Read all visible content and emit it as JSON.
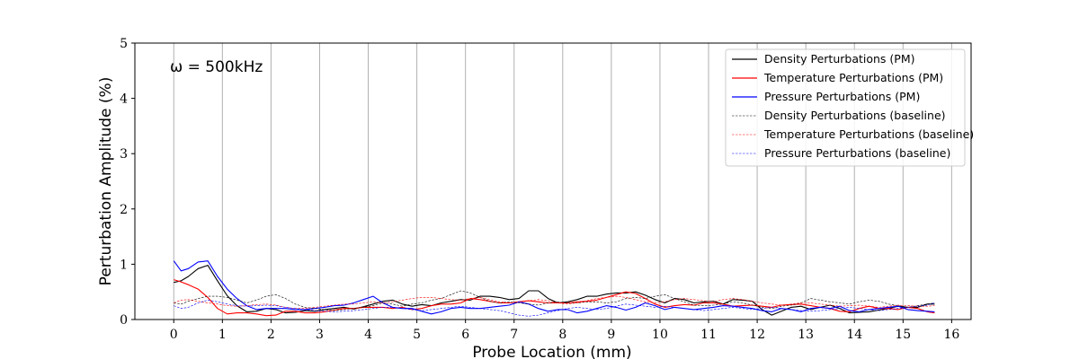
{
  "chart_data": {
    "type": "line",
    "title": "",
    "xlabel": "Probe Location (mm)",
    "ylabel": "Perturbation Amplitude (%)",
    "annotation": "ω = 500kHz",
    "xlim": [
      -0.8,
      16.4
    ],
    "ylim": [
      0,
      5
    ],
    "xticks": [
      0,
      1,
      2,
      3,
      4,
      5,
      6,
      7,
      8,
      9,
      10,
      11,
      12,
      13,
      14,
      15,
      16
    ],
    "yticks": [
      0,
      1,
      2,
      3,
      4,
      5
    ],
    "grid": "vertical",
    "legend_position": "upper right",
    "series": [
      {
        "name": "Density Perturbations (PM)",
        "color": "#000000",
        "style": "solid",
        "x": [
          0,
          0.15,
          0.3,
          0.5,
          0.7,
          0.9,
          1.1,
          1.3,
          1.5,
          1.7,
          1.9,
          2.1,
          2.3,
          2.5,
          2.7,
          2.9,
          3.1,
          3.3,
          3.5,
          3.7,
          3.9,
          4.1,
          4.3,
          4.5,
          4.7,
          4.9,
          5.1,
          5.3,
          5.5,
          5.7,
          5.9,
          6.1,
          6.3,
          6.5,
          6.7,
          6.9,
          7.1,
          7.3,
          7.5,
          7.7,
          7.9,
          8.1,
          8.3,
          8.5,
          8.7,
          8.9,
          9.1,
          9.3,
          9.5,
          9.7,
          9.9,
          10.1,
          10.3,
          10.5,
          10.7,
          10.9,
          11.1,
          11.3,
          11.5,
          11.7,
          11.9,
          12.1,
          12.3,
          12.5,
          12.7,
          12.9,
          13.1,
          13.3,
          13.5,
          13.7,
          13.9,
          14.1,
          14.3,
          14.5,
          14.7,
          14.9,
          15.1,
          15.3,
          15.5,
          15.65
        ],
        "values": [
          0.67,
          0.7,
          0.78,
          0.92,
          0.98,
          0.7,
          0.43,
          0.25,
          0.14,
          0.15,
          0.2,
          0.18,
          0.12,
          0.13,
          0.16,
          0.15,
          0.18,
          0.2,
          0.22,
          0.19,
          0.23,
          0.28,
          0.33,
          0.35,
          0.28,
          0.24,
          0.27,
          0.25,
          0.3,
          0.33,
          0.36,
          0.35,
          0.42,
          0.42,
          0.4,
          0.36,
          0.38,
          0.52,
          0.52,
          0.38,
          0.3,
          0.32,
          0.36,
          0.42,
          0.42,
          0.46,
          0.48,
          0.48,
          0.5,
          0.44,
          0.36,
          0.3,
          0.38,
          0.36,
          0.3,
          0.32,
          0.33,
          0.28,
          0.36,
          0.35,
          0.33,
          0.18,
          0.08,
          0.15,
          0.22,
          0.24,
          0.18,
          0.22,
          0.26,
          0.2,
          0.12,
          0.13,
          0.14,
          0.17,
          0.2,
          0.24,
          0.22,
          0.22,
          0.28,
          0.28
        ]
      },
      {
        "name": "Temperature Perturbations (PM)",
        "color": "#ff0000",
        "style": "solid",
        "x": [
          0,
          0.15,
          0.3,
          0.5,
          0.7,
          0.9,
          1.1,
          1.3,
          1.5,
          1.7,
          1.9,
          2.1,
          2.3,
          2.5,
          2.7,
          2.9,
          3.1,
          3.3,
          3.5,
          3.7,
          3.9,
          4.1,
          4.3,
          4.5,
          4.7,
          4.9,
          5.1,
          5.3,
          5.5,
          5.7,
          5.9,
          6.1,
          6.3,
          6.5,
          6.7,
          6.9,
          7.1,
          7.3,
          7.5,
          7.7,
          7.9,
          8.1,
          8.3,
          8.5,
          8.7,
          8.9,
          9.1,
          9.3,
          9.5,
          9.7,
          9.9,
          10.1,
          10.3,
          10.5,
          10.7,
          10.9,
          11.1,
          11.3,
          11.5,
          11.7,
          11.9,
          12.1,
          12.3,
          12.5,
          12.7,
          12.9,
          13.1,
          13.3,
          13.5,
          13.7,
          13.9,
          14.1,
          14.3,
          14.5,
          14.7,
          14.9,
          15.1,
          15.3,
          15.5,
          15.65
        ],
        "values": [
          0.72,
          0.68,
          0.63,
          0.55,
          0.4,
          0.2,
          0.1,
          0.12,
          0.12,
          0.1,
          0.07,
          0.08,
          0.15,
          0.15,
          0.12,
          0.12,
          0.14,
          0.17,
          0.2,
          0.2,
          0.22,
          0.22,
          0.22,
          0.2,
          0.22,
          0.18,
          0.2,
          0.25,
          0.28,
          0.28,
          0.3,
          0.38,
          0.36,
          0.33,
          0.3,
          0.3,
          0.32,
          0.34,
          0.32,
          0.3,
          0.3,
          0.3,
          0.32,
          0.33,
          0.35,
          0.4,
          0.45,
          0.5,
          0.47,
          0.38,
          0.28,
          0.22,
          0.25,
          0.27,
          0.26,
          0.3,
          0.3,
          0.28,
          0.24,
          0.25,
          0.26,
          0.24,
          0.22,
          0.26,
          0.27,
          0.28,
          0.25,
          0.22,
          0.2,
          0.15,
          0.14,
          0.2,
          0.24,
          0.2,
          0.2,
          0.18,
          0.22,
          0.2,
          0.14,
          0.12
        ]
      },
      {
        "name": "Pressure Perturbations (PM)",
        "color": "#0000ff",
        "style": "solid",
        "x": [
          0,
          0.15,
          0.3,
          0.5,
          0.7,
          0.9,
          1.1,
          1.3,
          1.5,
          1.7,
          1.9,
          2.1,
          2.3,
          2.5,
          2.7,
          2.9,
          3.1,
          3.3,
          3.5,
          3.7,
          3.9,
          4.1,
          4.3,
          4.5,
          4.7,
          4.9,
          5.1,
          5.3,
          5.5,
          5.7,
          5.9,
          6.1,
          6.3,
          6.5,
          6.7,
          6.9,
          7.1,
          7.3,
          7.5,
          7.7,
          7.9,
          8.1,
          8.3,
          8.5,
          8.7,
          8.9,
          9.1,
          9.3,
          9.5,
          9.7,
          9.9,
          10.1,
          10.3,
          10.5,
          10.7,
          10.9,
          11.1,
          11.3,
          11.5,
          11.7,
          11.9,
          12.1,
          12.3,
          12.5,
          12.7,
          12.9,
          13.1,
          13.3,
          13.5,
          13.7,
          13.9,
          14.1,
          14.3,
          14.5,
          14.7,
          14.9,
          15.1,
          15.3,
          15.5,
          15.65
        ],
        "values": [
          1.06,
          0.88,
          0.92,
          1.04,
          1.06,
          0.78,
          0.55,
          0.38,
          0.25,
          0.18,
          0.2,
          0.2,
          0.2,
          0.18,
          0.18,
          0.2,
          0.22,
          0.25,
          0.26,
          0.3,
          0.36,
          0.42,
          0.3,
          0.22,
          0.2,
          0.2,
          0.15,
          0.1,
          0.14,
          0.2,
          0.22,
          0.2,
          0.2,
          0.22,
          0.24,
          0.26,
          0.32,
          0.28,
          0.2,
          0.15,
          0.18,
          0.18,
          0.12,
          0.15,
          0.2,
          0.25,
          0.22,
          0.17,
          0.22,
          0.3,
          0.25,
          0.18,
          0.22,
          0.2,
          0.18,
          0.2,
          0.22,
          0.25,
          0.24,
          0.22,
          0.2,
          0.16,
          0.14,
          0.2,
          0.18,
          0.14,
          0.2,
          0.22,
          0.2,
          0.24,
          0.16,
          0.14,
          0.18,
          0.2,
          0.22,
          0.24,
          0.18,
          0.16,
          0.15,
          0.14
        ]
      },
      {
        "name": "Density Perturbations (baseline)",
        "color": "#000000",
        "style": "dashed",
        "x": [
          0,
          0.15,
          0.3,
          0.5,
          0.7,
          0.9,
          1.1,
          1.3,
          1.5,
          1.7,
          1.9,
          2.1,
          2.3,
          2.5,
          2.7,
          2.9,
          3.1,
          3.3,
          3.5,
          3.7,
          3.9,
          4.1,
          4.3,
          4.5,
          4.7,
          4.9,
          5.1,
          5.3,
          5.5,
          5.7,
          5.9,
          6.1,
          6.3,
          6.5,
          6.7,
          6.9,
          7.1,
          7.3,
          7.5,
          7.7,
          7.9,
          8.1,
          8.3,
          8.5,
          8.7,
          8.9,
          9.1,
          9.3,
          9.5,
          9.7,
          9.9,
          10.1,
          10.3,
          10.5,
          10.7,
          10.9,
          11.1,
          11.3,
          11.5,
          11.7,
          11.9,
          12.1,
          12.3,
          12.5,
          12.7,
          12.9,
          13.1,
          13.3,
          13.5,
          13.7,
          13.9,
          14.1,
          14.3,
          14.5,
          14.7,
          14.9,
          15.1,
          15.3,
          15.5,
          15.65
        ],
        "values": [
          0.3,
          0.28,
          0.33,
          0.38,
          0.42,
          0.42,
          0.4,
          0.35,
          0.3,
          0.35,
          0.42,
          0.45,
          0.38,
          0.28,
          0.22,
          0.2,
          0.18,
          0.16,
          0.18,
          0.2,
          0.22,
          0.25,
          0.3,
          0.28,
          0.24,
          0.28,
          0.3,
          0.35,
          0.38,
          0.45,
          0.52,
          0.48,
          0.4,
          0.33,
          0.3,
          0.32,
          0.3,
          0.28,
          0.26,
          0.3,
          0.32,
          0.3,
          0.3,
          0.32,
          0.32,
          0.3,
          0.32,
          0.38,
          0.4,
          0.38,
          0.42,
          0.45,
          0.38,
          0.32,
          0.26,
          0.25,
          0.26,
          0.28,
          0.32,
          0.3,
          0.26,
          0.22,
          0.2,
          0.24,
          0.26,
          0.3,
          0.38,
          0.35,
          0.32,
          0.3,
          0.28,
          0.32,
          0.35,
          0.33,
          0.28,
          0.25,
          0.22,
          0.25,
          0.28,
          0.3
        ]
      },
      {
        "name": "Temperature Perturbations (baseline)",
        "color": "#ff0000",
        "style": "dashed",
        "x": [
          0,
          0.15,
          0.3,
          0.5,
          0.7,
          0.9,
          1.1,
          1.3,
          1.5,
          1.7,
          1.9,
          2.1,
          2.3,
          2.5,
          2.7,
          2.9,
          3.1,
          3.3,
          3.5,
          3.7,
          3.9,
          4.1,
          4.3,
          4.5,
          4.7,
          4.9,
          5.1,
          5.3,
          5.5,
          5.7,
          5.9,
          6.1,
          6.3,
          6.5,
          6.7,
          6.9,
          7.1,
          7.3,
          7.5,
          7.7,
          7.9,
          8.1,
          8.3,
          8.5,
          8.7,
          8.9,
          9.1,
          9.3,
          9.5,
          9.7,
          9.9,
          10.1,
          10.3,
          10.5,
          10.7,
          10.9,
          11.1,
          11.3,
          11.5,
          11.7,
          11.9,
          12.1,
          12.3,
          12.5,
          12.7,
          12.9,
          13.1,
          13.3,
          13.5,
          13.7,
          13.9,
          14.1,
          14.3,
          14.5,
          14.7,
          14.9,
          15.1,
          15.3,
          15.5,
          15.65
        ],
        "values": [
          0.3,
          0.35,
          0.36,
          0.33,
          0.3,
          0.28,
          0.25,
          0.24,
          0.25,
          0.27,
          0.28,
          0.26,
          0.22,
          0.2,
          0.2,
          0.22,
          0.24,
          0.26,
          0.28,
          0.28,
          0.3,
          0.32,
          0.3,
          0.32,
          0.35,
          0.38,
          0.4,
          0.4,
          0.38,
          0.36,
          0.35,
          0.38,
          0.4,
          0.36,
          0.32,
          0.3,
          0.32,
          0.34,
          0.36,
          0.34,
          0.3,
          0.28,
          0.3,
          0.34,
          0.38,
          0.4,
          0.42,
          0.4,
          0.36,
          0.32,
          0.3,
          0.32,
          0.36,
          0.38,
          0.36,
          0.34,
          0.32,
          0.36,
          0.38,
          0.36,
          0.33,
          0.3,
          0.28,
          0.26,
          0.28,
          0.3,
          0.3,
          0.28,
          0.26,
          0.24,
          0.25,
          0.26,
          0.24,
          0.22,
          0.24,
          0.26,
          0.25,
          0.24,
          0.24,
          0.25
        ]
      },
      {
        "name": "Pressure Perturbations (baseline)",
        "color": "#0000ff",
        "style": "dashed",
        "x": [
          0,
          0.15,
          0.3,
          0.5,
          0.7,
          0.9,
          1.1,
          1.3,
          1.5,
          1.7,
          1.9,
          2.1,
          2.3,
          2.5,
          2.7,
          2.9,
          3.1,
          3.3,
          3.5,
          3.7,
          3.9,
          4.1,
          4.3,
          4.5,
          4.7,
          4.9,
          5.1,
          5.3,
          5.5,
          5.7,
          5.9,
          6.1,
          6.3,
          6.5,
          6.7,
          6.9,
          7.1,
          7.3,
          7.5,
          7.7,
          7.9,
          8.1,
          8.3,
          8.5,
          8.7,
          8.9,
          9.1,
          9.3,
          9.5,
          9.7,
          9.9,
          10.1,
          10.3,
          10.5,
          10.7,
          10.9,
          11.1,
          11.3,
          11.5,
          11.7,
          11.9,
          12.1,
          12.3,
          12.5,
          12.7,
          12.9,
          13.1,
          13.3,
          13.5,
          13.7,
          13.9,
          14.1,
          14.3,
          14.5,
          14.7,
          14.9,
          15.1,
          15.3,
          15.5,
          15.65
        ],
        "values": [
          0.25,
          0.2,
          0.22,
          0.3,
          0.35,
          0.32,
          0.28,
          0.25,
          0.24,
          0.25,
          0.26,
          0.25,
          0.22,
          0.2,
          0.18,
          0.16,
          0.15,
          0.14,
          0.15,
          0.16,
          0.18,
          0.2,
          0.22,
          0.22,
          0.2,
          0.18,
          0.16,
          0.18,
          0.2,
          0.22,
          0.24,
          0.22,
          0.2,
          0.18,
          0.16,
          0.12,
          0.08,
          0.06,
          0.08,
          0.12,
          0.16,
          0.2,
          0.22,
          0.2,
          0.18,
          0.2,
          0.24,
          0.28,
          0.26,
          0.24,
          0.22,
          0.24,
          0.22,
          0.2,
          0.18,
          0.16,
          0.18,
          0.2,
          0.22,
          0.2,
          0.18,
          0.2,
          0.22,
          0.2,
          0.18,
          0.16,
          0.15,
          0.16,
          0.18,
          0.2,
          0.22,
          0.2,
          0.18,
          0.16,
          0.18,
          0.2,
          0.22,
          0.24,
          0.26,
          0.3
        ]
      }
    ]
  }
}
